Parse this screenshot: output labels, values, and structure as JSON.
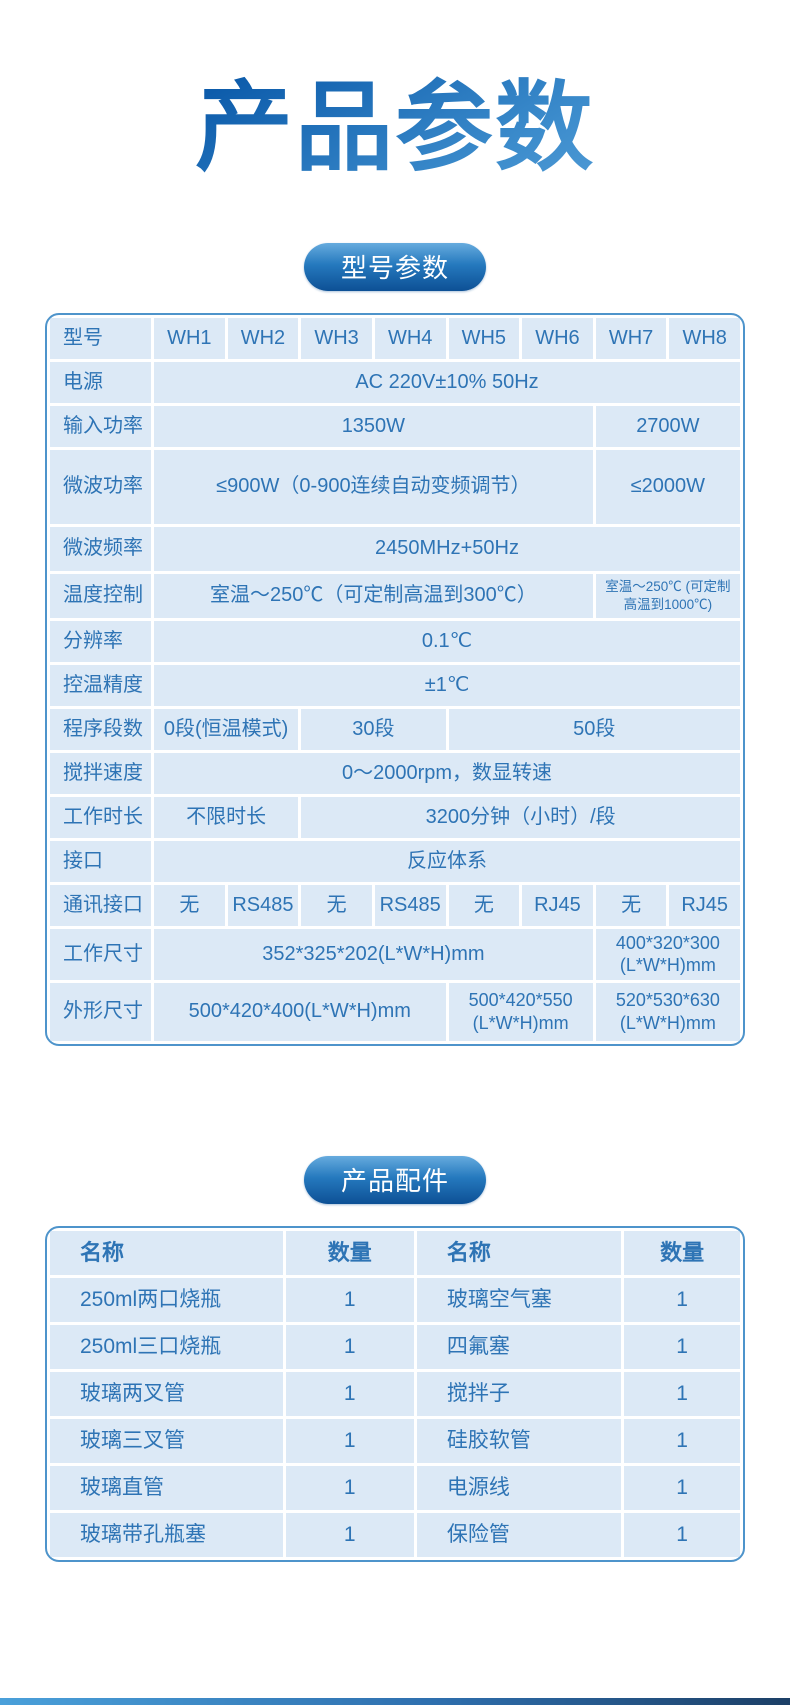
{
  "page": {
    "title": "产品参数",
    "section1_label": "型号参数",
    "section2_label": "产品配件"
  },
  "colors": {
    "title_gradient_dark": "#0d5cab",
    "title_gradient_light": "#63aadf",
    "pill_blue": "#2579be",
    "cell_background": "#dce9f6",
    "cell_text": "#2e74b5",
    "table_border": "#4e94cb",
    "bottom_bar_left": "#4aa0da",
    "bottom_bar_right": "#1c3f66"
  },
  "spec": {
    "header": {
      "label": "型号",
      "models": [
        "WH1",
        "WH2",
        "WH3",
        "WH4",
        "WH5",
        "WH6",
        "WH7",
        "WH8"
      ]
    },
    "rows": [
      {
        "label": "电源",
        "cells": [
          "AC 220V±10% 50Hz"
        ]
      },
      {
        "label": "输入功率",
        "cells": [
          "1350W",
          "2700W"
        ]
      },
      {
        "label": "微波功率",
        "cells": [
          "≤900W（0-900连续自动变频调节）",
          "≤2000W"
        ]
      },
      {
        "label": "微波频率",
        "cells": [
          "2450MHz+50Hz"
        ]
      },
      {
        "label": "温度控制",
        "cells": [
          "室温～250℃（可定制高温到300℃）",
          "室温～250℃ (可定制高温到1000℃)"
        ]
      },
      {
        "label": "分辨率",
        "cells": [
          "0.1℃"
        ]
      },
      {
        "label": "控温精度",
        "cells": [
          "±1℃"
        ]
      },
      {
        "label": "程序段数",
        "cells": [
          "0段(恒温模式)",
          "30段",
          "50段"
        ]
      },
      {
        "label": "搅拌速度",
        "cells": [
          "0～2000rpm，数显转速"
        ]
      },
      {
        "label": "工作时长",
        "cells": [
          "不限时长",
          "3200分钟（小时）/段"
        ]
      },
      {
        "label": "接口",
        "cells": [
          "反应体系"
        ]
      },
      {
        "label": "通讯接口",
        "cells": [
          "无",
          "RS485",
          "无",
          "RS485",
          "无",
          "RJ45",
          "无",
          "RJ45"
        ]
      },
      {
        "label": "工作尺寸",
        "cells": [
          "352*325*202(L*W*H)mm",
          "400*320*300 (L*W*H)mm"
        ]
      },
      {
        "label": "外形尺寸",
        "cells": [
          "500*420*400(L*W*H)mm",
          "500*420*550 (L*W*H)mm",
          "520*530*630 (L*W*H)mm"
        ]
      }
    ]
  },
  "acc": {
    "headers": [
      "名称",
      "数量",
      "名称",
      "数量"
    ],
    "rows": [
      [
        "250ml两口烧瓶",
        "1",
        "玻璃空气塞",
        "1"
      ],
      [
        "250ml三口烧瓶",
        "1",
        "四氟塞",
        "1"
      ],
      [
        "玻璃两叉管",
        "1",
        "搅拌子",
        "1"
      ],
      [
        "玻璃三叉管",
        "1",
        "硅胶软管",
        "1"
      ],
      [
        "玻璃直管",
        "1",
        "电源线",
        "1"
      ],
      [
        "玻璃带孔瓶塞",
        "1",
        "保险管",
        "1"
      ]
    ]
  }
}
